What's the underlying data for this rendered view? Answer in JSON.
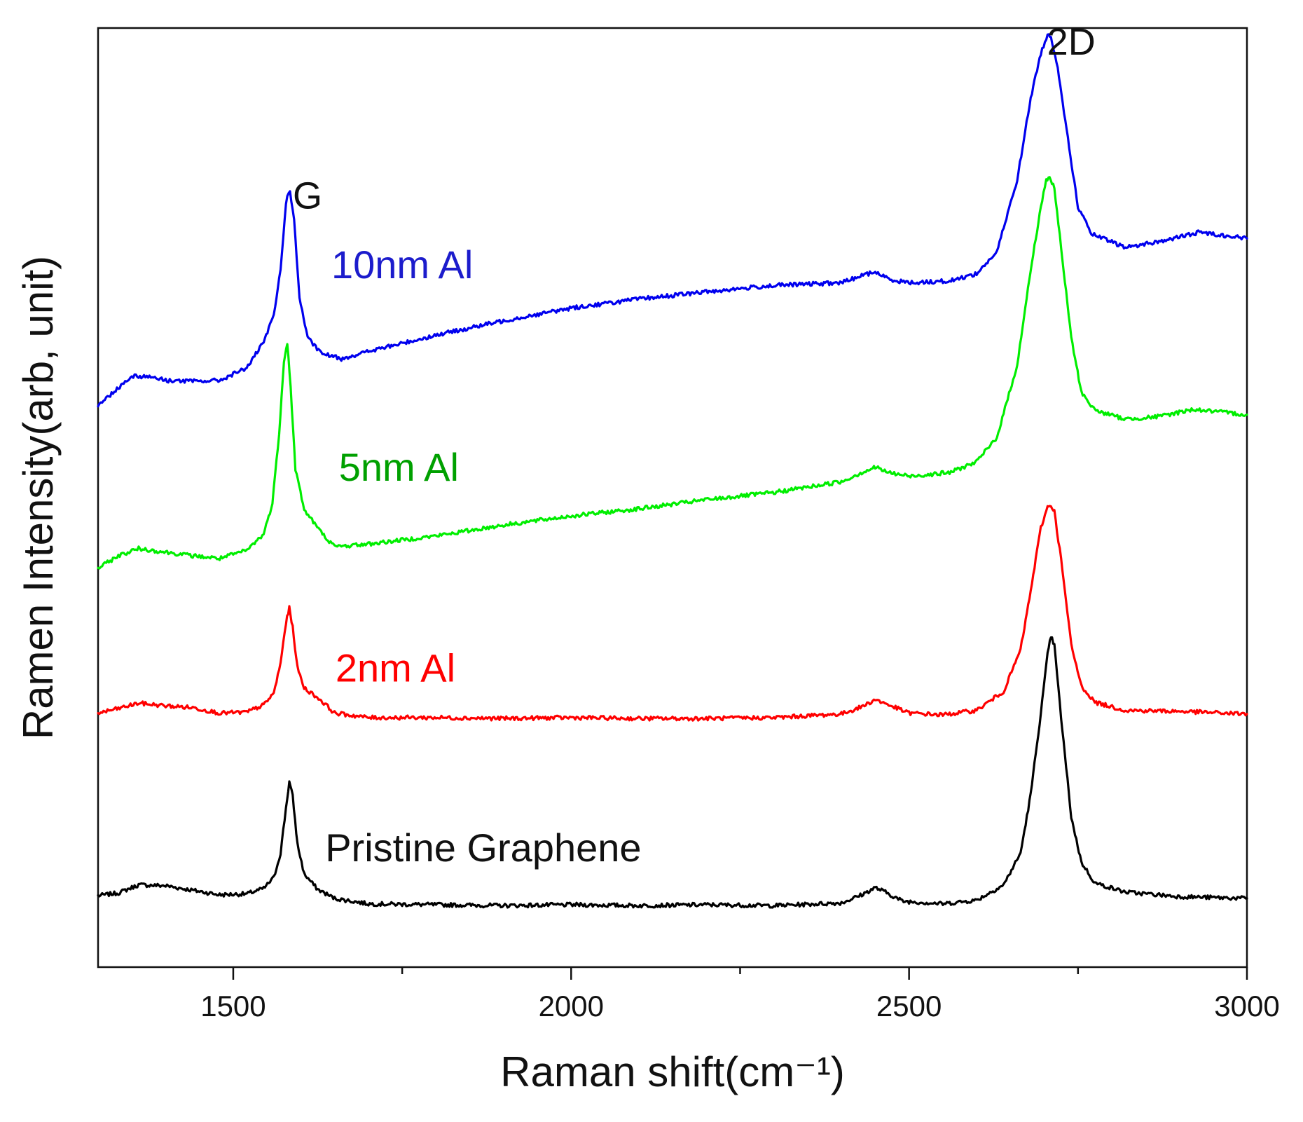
{
  "chart_data": {
    "type": "line",
    "title": "",
    "xlabel": "Raman shift(cm⁻¹)",
    "ylabel": "Ramen Intensity(arb, unit)",
    "xlim": [
      1300,
      3000
    ],
    "ylim": [
      0,
      100
    ],
    "x_ticks": [
      1500,
      2000,
      2500,
      3000
    ],
    "x_minor_ticks": [
      1750,
      2250,
      2750
    ],
    "peak_labels": [
      {
        "text": "G",
        "x": 1610,
        "y": 83
      },
      {
        "text": "2D",
        "x": 2740,
        "y": 100
      }
    ],
    "series": [
      {
        "name": "Pristine Graphene",
        "color": "#000000",
        "label_color": "#111111",
        "label_pos": [
          1870,
          8.6
        ],
        "points": [
          [
            1300,
            4.8
          ],
          [
            1330,
            5.1
          ],
          [
            1360,
            6.0
          ],
          [
            1400,
            5.9
          ],
          [
            1440,
            5.4
          ],
          [
            1480,
            4.9
          ],
          [
            1520,
            5.0
          ],
          [
            1545,
            5.6
          ],
          [
            1560,
            6.8
          ],
          [
            1570,
            9.5
          ],
          [
            1578,
            14.5
          ],
          [
            1583,
            17.4
          ],
          [
            1588,
            15.8
          ],
          [
            1595,
            10.5
          ],
          [
            1605,
            7.2
          ],
          [
            1625,
            5.5
          ],
          [
            1650,
            4.5
          ],
          [
            1700,
            3.9
          ],
          [
            1800,
            3.8
          ],
          [
            1900,
            3.7
          ],
          [
            2000,
            3.8
          ],
          [
            2100,
            3.7
          ],
          [
            2200,
            3.8
          ],
          [
            2300,
            3.7
          ],
          [
            2400,
            4.0
          ],
          [
            2430,
            4.9
          ],
          [
            2450,
            5.7
          ],
          [
            2465,
            5.2
          ],
          [
            2490,
            4.2
          ],
          [
            2550,
            3.9
          ],
          [
            2600,
            4.3
          ],
          [
            2640,
            6.0
          ],
          [
            2665,
            9.5
          ],
          [
            2680,
            16.0
          ],
          [
            2695,
            25.0
          ],
          [
            2705,
            31.5
          ],
          [
            2710,
            33.5
          ],
          [
            2715,
            32.5
          ],
          [
            2725,
            24.5
          ],
          [
            2740,
            13.5
          ],
          [
            2755,
            8.5
          ],
          [
            2775,
            6.2
          ],
          [
            2820,
            5.2
          ],
          [
            2900,
            4.7
          ],
          [
            3000,
            4.5
          ]
        ]
      },
      {
        "name": "2nm Al",
        "color": "#ff0000",
        "label_color": "#ff0000",
        "label_pos": [
          1740,
          28.5
        ],
        "points": [
          [
            1300,
            25.0
          ],
          [
            1330,
            25.5
          ],
          [
            1360,
            26.1
          ],
          [
            1400,
            25.8
          ],
          [
            1440,
            25.6
          ],
          [
            1480,
            25.0
          ],
          [
            1520,
            25.1
          ],
          [
            1545,
            25.9
          ],
          [
            1560,
            27.2
          ],
          [
            1570,
            30.5
          ],
          [
            1578,
            35.0
          ],
          [
            1583,
            36.6
          ],
          [
            1588,
            34.5
          ],
          [
            1595,
            30.0
          ],
          [
            1605,
            27.8
          ],
          [
            1630,
            26.4
          ],
          [
            1650,
            25.0
          ],
          [
            1700,
            24.5
          ],
          [
            1800,
            24.5
          ],
          [
            1900,
            24.4
          ],
          [
            2000,
            24.5
          ],
          [
            2100,
            24.4
          ],
          [
            2200,
            24.4
          ],
          [
            2300,
            24.5
          ],
          [
            2400,
            24.9
          ],
          [
            2430,
            25.7
          ],
          [
            2450,
            26.5
          ],
          [
            2470,
            25.9
          ],
          [
            2500,
            25.0
          ],
          [
            2550,
            24.8
          ],
          [
            2600,
            25.3
          ],
          [
            2640,
            27.4
          ],
          [
            2665,
            32.0
          ],
          [
            2680,
            38.5
          ],
          [
            2695,
            45.5
          ],
          [
            2705,
            47.8
          ],
          [
            2710,
            48.0
          ],
          [
            2715,
            47.3
          ],
          [
            2725,
            42.0
          ],
          [
            2740,
            32.5
          ],
          [
            2755,
            28.0
          ],
          [
            2775,
            26.2
          ],
          [
            2820,
            25.3
          ],
          [
            2900,
            25.2
          ],
          [
            3000,
            24.9
          ]
        ]
      },
      {
        "name": "5nm Al",
        "color": "#00ee00",
        "label_color": "#00a000",
        "label_pos": [
          1745,
          50.7
        ],
        "points": [
          [
            1300,
            41.0
          ],
          [
            1330,
            42.4
          ],
          [
            1360,
            43.2
          ],
          [
            1400,
            42.8
          ],
          [
            1440,
            42.4
          ],
          [
            1480,
            42.1
          ],
          [
            1520,
            43.0
          ],
          [
            1545,
            44.8
          ],
          [
            1558,
            48.2
          ],
          [
            1568,
            56.0
          ],
          [
            1575,
            64.0
          ],
          [
            1580,
            66.0
          ],
          [
            1585,
            61.0
          ],
          [
            1592,
            52.0
          ],
          [
            1605,
            47.5
          ],
          [
            1630,
            45.0
          ],
          [
            1650,
            43.4
          ],
          [
            1700,
            43.7
          ],
          [
            1800,
            44.6
          ],
          [
            1900,
            45.8
          ],
          [
            2000,
            46.8
          ],
          [
            2100,
            47.6
          ],
          [
            2200,
            48.6
          ],
          [
            2300,
            49.4
          ],
          [
            2350,
            50.0
          ],
          [
            2400,
            50.6
          ],
          [
            2430,
            51.6
          ],
          [
            2450,
            52.2
          ],
          [
            2470,
            51.6
          ],
          [
            2500,
            51.2
          ],
          [
            2560,
            51.6
          ],
          [
            2600,
            52.8
          ],
          [
            2630,
            55.5
          ],
          [
            2660,
            63.5
          ],
          [
            2680,
            74.0
          ],
          [
            2695,
            81.0
          ],
          [
            2703,
            84.0
          ],
          [
            2708,
            84.3
          ],
          [
            2715,
            83.0
          ],
          [
            2725,
            76.5
          ],
          [
            2740,
            66.5
          ],
          [
            2755,
            60.5
          ],
          [
            2775,
            58.5
          ],
          [
            2820,
            57.5
          ],
          [
            2870,
            57.8
          ],
          [
            2920,
            58.6
          ],
          [
            3000,
            58.0
          ]
        ]
      },
      {
        "name": "10nm Al",
        "color": "#0000ee",
        "label_color": "#1c1ccc",
        "label_pos": [
          1750,
          73.1
        ],
        "points": [
          [
            1300,
            59.0
          ],
          [
            1330,
            61.0
          ],
          [
            1350,
            62.3
          ],
          [
            1380,
            62.2
          ],
          [
            1400,
            61.8
          ],
          [
            1440,
            61.7
          ],
          [
            1480,
            61.8
          ],
          [
            1520,
            63.2
          ],
          [
            1545,
            66.0
          ],
          [
            1560,
            69.0
          ],
          [
            1570,
            74.0
          ],
          [
            1578,
            81.5
          ],
          [
            1584,
            82.9
          ],
          [
            1590,
            79.5
          ],
          [
            1598,
            71.0
          ],
          [
            1610,
            66.5
          ],
          [
            1630,
            64.8
          ],
          [
            1660,
            64.2
          ],
          [
            1700,
            65.0
          ],
          [
            1800,
            66.8
          ],
          [
            1900,
            68.4
          ],
          [
            2000,
            69.8
          ],
          [
            2100,
            70.8
          ],
          [
            2200,
            71.6
          ],
          [
            2300,
            72.3
          ],
          [
            2400,
            72.6
          ],
          [
            2430,
            73.4
          ],
          [
            2450,
            73.8
          ],
          [
            2470,
            73.0
          ],
          [
            2500,
            72.6
          ],
          [
            2560,
            72.8
          ],
          [
            2600,
            73.6
          ],
          [
            2630,
            76.0
          ],
          [
            2660,
            84.0
          ],
          [
            2680,
            93.0
          ],
          [
            2695,
            98.0
          ],
          [
            2705,
            100.0
          ],
          [
            2710,
            99.8
          ],
          [
            2720,
            96.5
          ],
          [
            2735,
            88.5
          ],
          [
            2750,
            81.0
          ],
          [
            2770,
            78.0
          ],
          [
            2820,
            76.5
          ],
          [
            2880,
            77.3
          ],
          [
            2930,
            78.2
          ],
          [
            3000,
            77.5
          ]
        ]
      }
    ]
  }
}
